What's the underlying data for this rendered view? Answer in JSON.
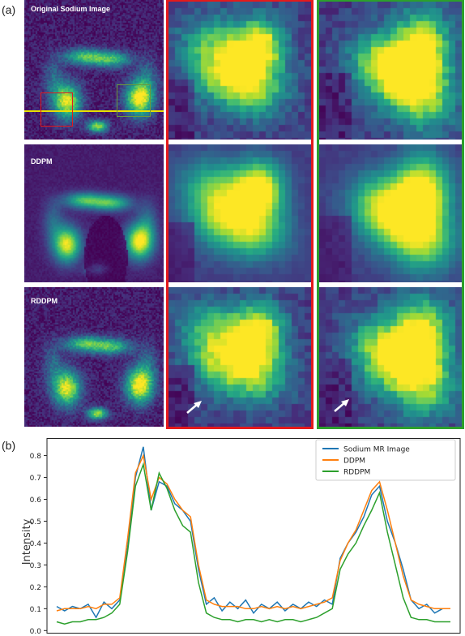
{
  "figure": {
    "panel_a_label": "(a)",
    "panel_b_label": "(b)",
    "row_labels": [
      "Original Sodium Image",
      "DDPM",
      "RDDPM"
    ],
    "frame_colors": {
      "red": "#e41a1c",
      "green": "#2ca02c",
      "line": "#e8e000"
    },
    "colormap": "viridis",
    "arrow_icon": "white-arrow-icon"
  },
  "chart_data": {
    "type": "line",
    "title": "",
    "xlabel": "",
    "ylabel": "Intensity",
    "ylim": [
      -0.01,
      0.88
    ],
    "xlim": [
      0,
      100
    ],
    "yticks": [
      "0.0",
      "0.1",
      "0.2",
      "0.3",
      "0.4",
      "0.5",
      "0.6",
      "0.7",
      "0.8"
    ],
    "legend_position": "top-right",
    "grid": false,
    "series": [
      {
        "name": "Sodium MR Image",
        "color": "#1f77b4",
        "x": [
          0,
          2,
          4,
          6,
          8,
          10,
          12,
          14,
          16,
          18,
          20,
          22,
          24,
          26,
          28,
          30,
          32,
          34,
          36,
          38,
          40,
          42,
          44,
          46,
          48,
          50,
          52,
          54,
          56,
          58,
          60,
          62,
          64,
          66,
          68,
          70,
          72,
          74,
          76,
          78,
          80,
          82,
          84,
          86,
          88,
          90,
          92,
          94,
          96,
          98,
          100
        ],
        "values": [
          0.11,
          0.09,
          0.11,
          0.1,
          0.12,
          0.06,
          0.13,
          0.1,
          0.14,
          0.38,
          0.7,
          0.84,
          0.55,
          0.68,
          0.66,
          0.58,
          0.55,
          0.5,
          0.28,
          0.12,
          0.15,
          0.09,
          0.13,
          0.1,
          0.14,
          0.08,
          0.12,
          0.1,
          0.13,
          0.09,
          0.12,
          0.1,
          0.13,
          0.11,
          0.14,
          0.12,
          0.33,
          0.4,
          0.45,
          0.52,
          0.62,
          0.66,
          0.5,
          0.4,
          0.28,
          0.14,
          0.1,
          0.12,
          0.08,
          0.1,
          0.1
        ]
      },
      {
        "name": "DDPM",
        "color": "#ff7f0e",
        "x": [
          0,
          2,
          4,
          6,
          8,
          10,
          12,
          14,
          16,
          18,
          20,
          22,
          24,
          26,
          28,
          30,
          32,
          34,
          36,
          38,
          40,
          42,
          44,
          46,
          48,
          50,
          52,
          54,
          56,
          58,
          60,
          62,
          64,
          66,
          68,
          70,
          72,
          74,
          76,
          78,
          80,
          82,
          84,
          86,
          88,
          90,
          92,
          94,
          96,
          98,
          100
        ],
        "values": [
          0.09,
          0.1,
          0.1,
          0.1,
          0.11,
          0.1,
          0.12,
          0.12,
          0.15,
          0.42,
          0.72,
          0.8,
          0.6,
          0.7,
          0.67,
          0.6,
          0.55,
          0.52,
          0.3,
          0.14,
          0.12,
          0.11,
          0.11,
          0.11,
          0.1,
          0.1,
          0.11,
          0.1,
          0.11,
          0.1,
          0.11,
          0.1,
          0.11,
          0.12,
          0.13,
          0.15,
          0.32,
          0.4,
          0.46,
          0.55,
          0.64,
          0.68,
          0.55,
          0.4,
          0.25,
          0.14,
          0.12,
          0.11,
          0.1,
          0.1,
          0.1
        ]
      },
      {
        "name": "RDDPM",
        "color": "#2ca02c",
        "x": [
          0,
          2,
          4,
          6,
          8,
          10,
          12,
          14,
          16,
          18,
          20,
          22,
          24,
          26,
          28,
          30,
          32,
          34,
          36,
          38,
          40,
          42,
          44,
          46,
          48,
          50,
          52,
          54,
          56,
          58,
          60,
          62,
          64,
          66,
          68,
          70,
          72,
          74,
          76,
          78,
          80,
          82,
          84,
          86,
          88,
          90,
          92,
          94,
          96,
          98,
          100
        ],
        "values": [
          0.04,
          0.03,
          0.04,
          0.04,
          0.05,
          0.05,
          0.06,
          0.08,
          0.12,
          0.36,
          0.66,
          0.76,
          0.55,
          0.72,
          0.65,
          0.55,
          0.48,
          0.45,
          0.22,
          0.08,
          0.06,
          0.05,
          0.05,
          0.04,
          0.05,
          0.05,
          0.04,
          0.05,
          0.04,
          0.05,
          0.05,
          0.04,
          0.05,
          0.06,
          0.08,
          0.1,
          0.28,
          0.35,
          0.4,
          0.48,
          0.55,
          0.63,
          0.45,
          0.3,
          0.15,
          0.06,
          0.05,
          0.05,
          0.04,
          0.04,
          0.04
        ]
      }
    ]
  }
}
